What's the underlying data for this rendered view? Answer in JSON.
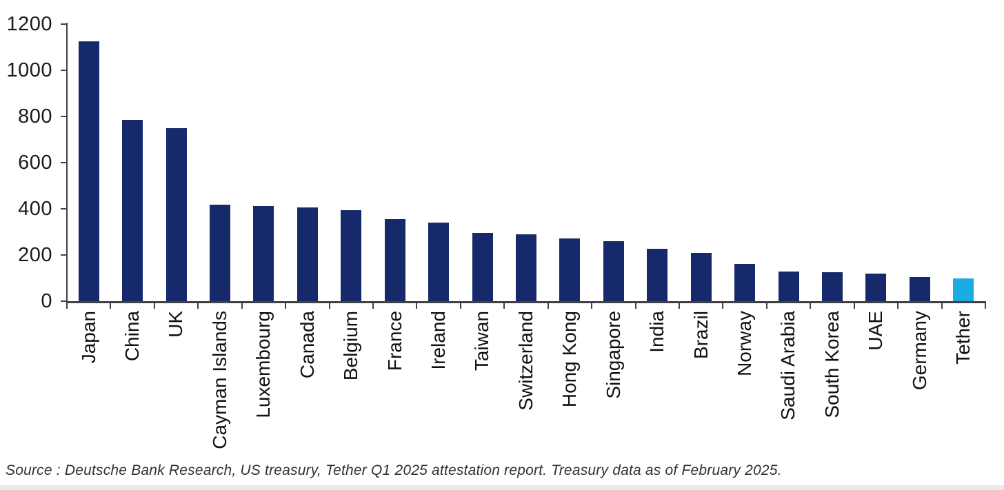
{
  "chart_data": {
    "type": "bar",
    "title": "",
    "xlabel": "",
    "ylabel": "",
    "categories": [
      "Japan",
      "China",
      "UK",
      "Cayman Islands",
      "Luxembourg",
      "Canada",
      "Belgium",
      "France",
      "Ireland",
      "Taiwan",
      "Switzerland",
      "Hong Kong",
      "Singapore",
      "India",
      "Brazil",
      "Norway",
      "Saudi Arabia",
      "South Korea",
      "UAE",
      "Germany",
      "Tether"
    ],
    "values": [
      1126,
      784,
      750,
      418,
      413,
      406,
      395,
      354,
      339,
      295,
      291,
      273,
      260,
      228,
      208,
      162,
      127,
      125,
      120,
      104,
      98
    ],
    "ylim": [
      0,
      1200
    ],
    "yticks": [
      0,
      200,
      400,
      600,
      800,
      1000,
      1200
    ],
    "grid": false,
    "legend": false,
    "bar_color": "#16296a",
    "highlight": {
      "category": "Tether",
      "color": "#1aace4"
    },
    "axis_color": "#414141",
    "tick_label_color": "#1a1a1a"
  },
  "source_note": "Source : Deutsche Bank Research, US treasury, Tether Q1 2025 attestation report. Treasury data as of February 2025."
}
